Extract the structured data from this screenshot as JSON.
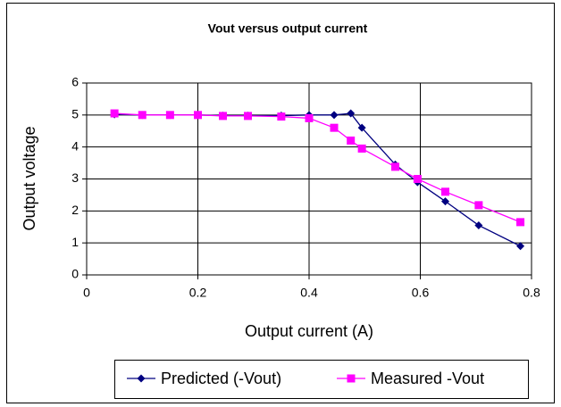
{
  "chart_data": {
    "type": "scatter",
    "title": "Vout versus output current",
    "x_label": "Output current (A)",
    "y_label": "Output voltage",
    "series": [
      {
        "name": "Predicted (-Vout)",
        "color": "#000080",
        "marker": "diamond",
        "x": [
          0.05,
          0.1,
          0.15,
          0.2,
          0.245,
          0.29,
          0.35,
          0.4,
          0.445,
          0.475,
          0.495,
          0.555,
          0.595,
          0.645,
          0.705,
          0.78
        ],
        "values": [
          5.02,
          5.0,
          5.0,
          5.0,
          4.98,
          4.98,
          4.98,
          5.0,
          5.0,
          5.05,
          4.6,
          3.45,
          2.9,
          2.3,
          1.55,
          0.9
        ]
      },
      {
        "name": "Measured -Vout",
        "color": "#ff00ff",
        "marker": "square",
        "x": [
          0.05,
          0.1,
          0.15,
          0.2,
          0.245,
          0.29,
          0.35,
          0.4,
          0.445,
          0.475,
          0.495,
          0.555,
          0.595,
          0.645,
          0.705,
          0.78
        ],
        "values": [
          5.05,
          5.0,
          5.0,
          5.0,
          4.97,
          4.97,
          4.95,
          4.9,
          4.6,
          4.2,
          3.95,
          3.38,
          3.0,
          2.6,
          2.18,
          1.65
        ]
      }
    ],
    "xlim": [
      0,
      0.8
    ],
    "xticks": [
      0,
      0.2,
      0.4,
      0.6,
      0.8
    ],
    "ylim": [
      0,
      6
    ],
    "yticks": [
      0,
      1,
      2,
      3,
      4,
      5,
      6
    ],
    "grid": true,
    "legend": "bottom"
  }
}
